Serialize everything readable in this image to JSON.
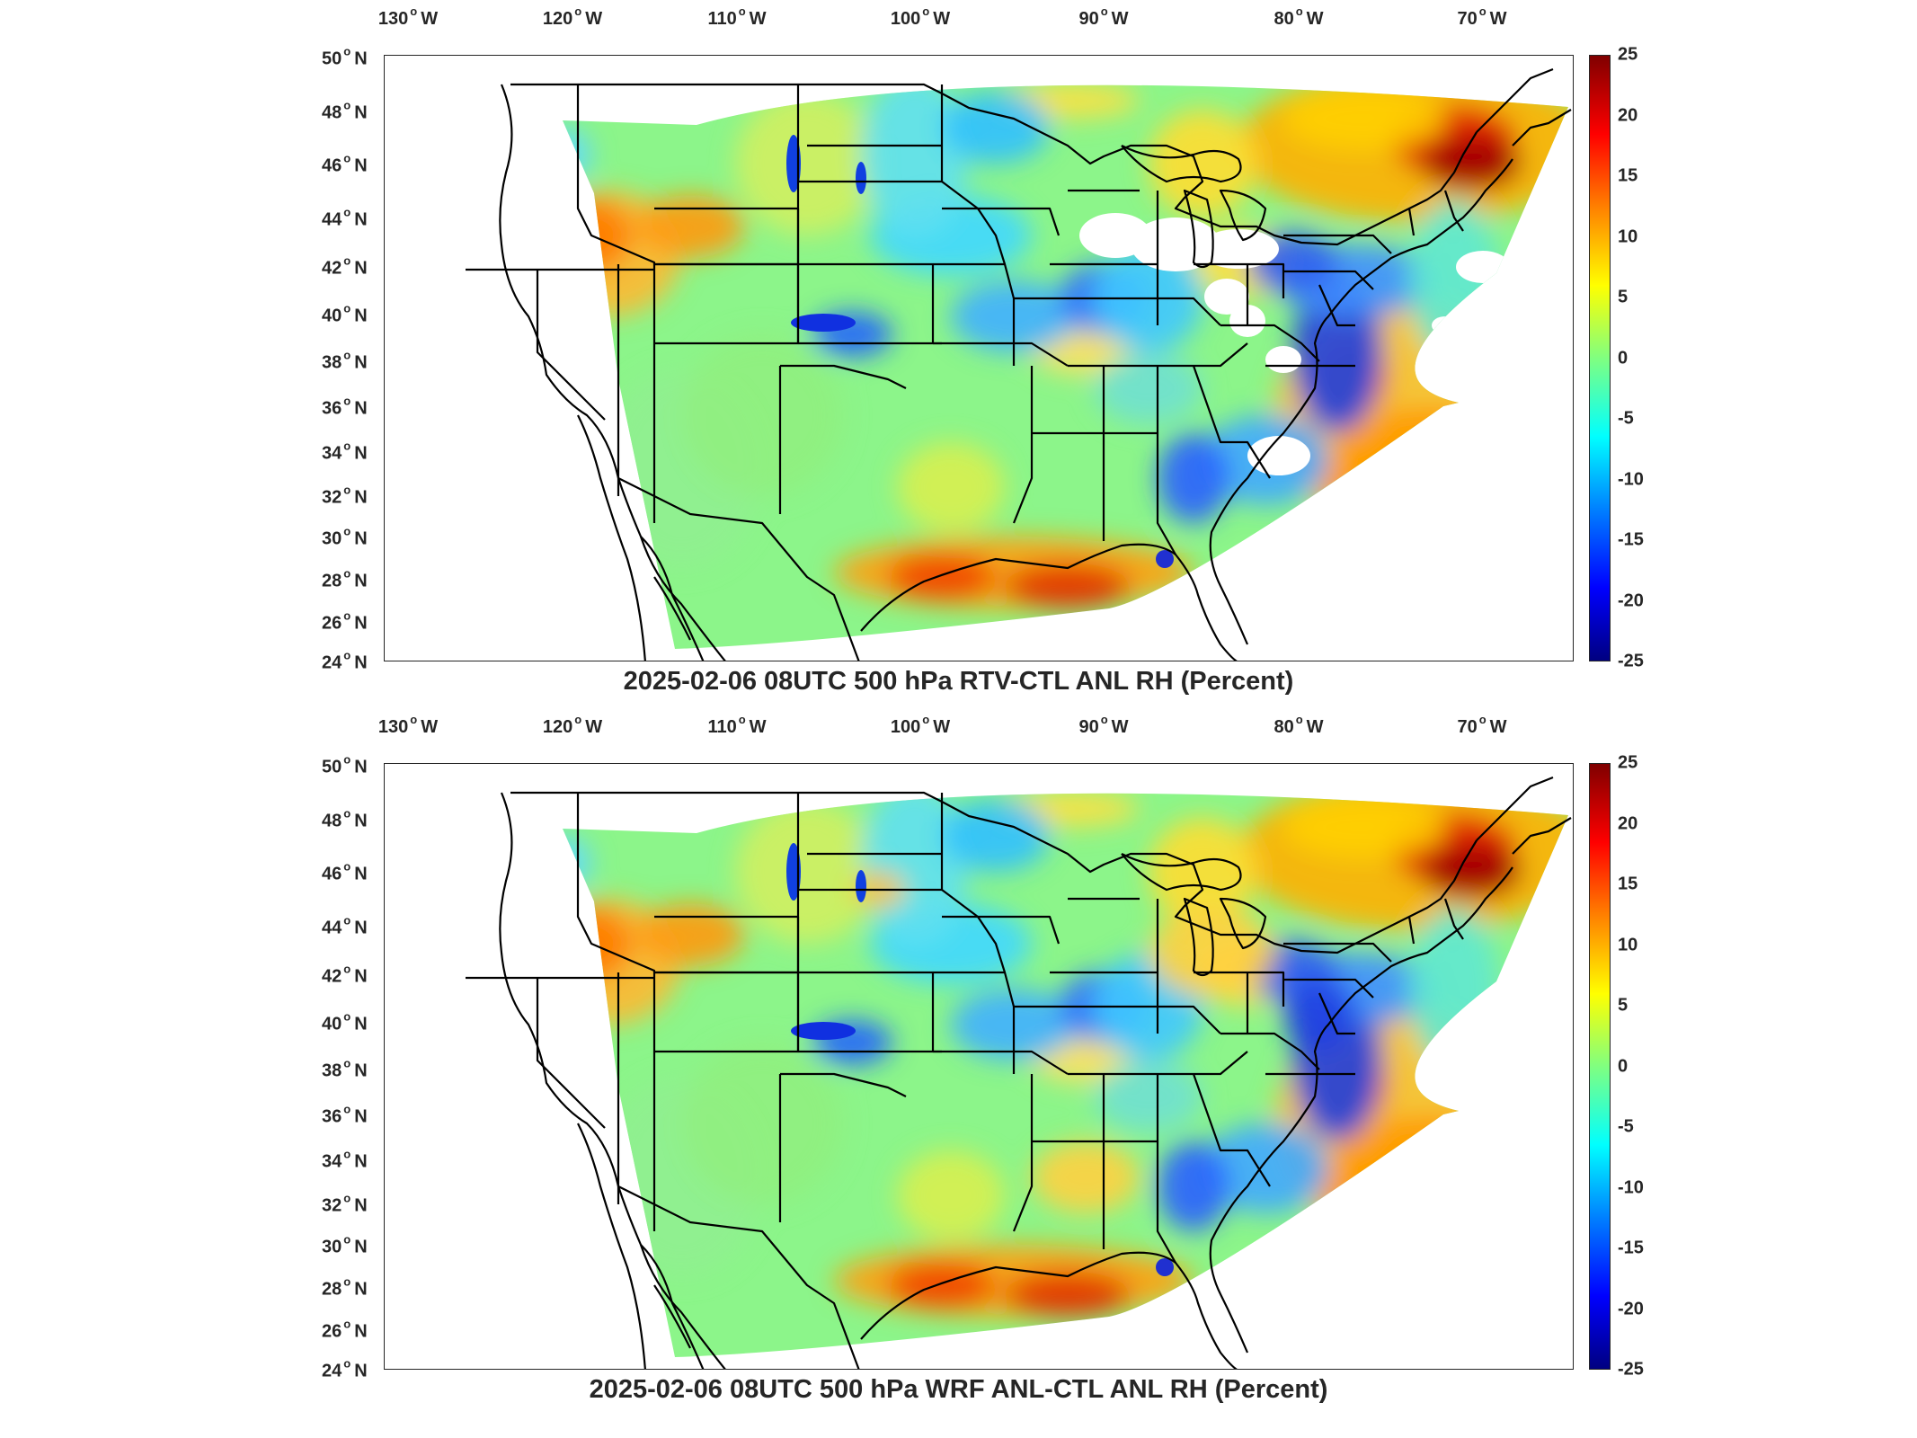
{
  "figure": {
    "panels": [
      {
        "title": "2025-02-06 08UTC 500 hPa RTV-CTL ANL RH (Percent)"
      },
      {
        "title": "2025-02-06 08UTC 500 hPa WRF ANL-CTL ANL RH (Percent)"
      }
    ],
    "lon_ticks": [
      "130",
      "120",
      "110",
      "100",
      "90",
      "80",
      "70"
    ],
    "lon_suffix": "W",
    "lat_ticks": [
      "50",
      "48",
      "46",
      "44",
      "42",
      "40",
      "38",
      "36",
      "34",
      "32",
      "30",
      "28",
      "26",
      "24"
    ],
    "lat_suffix": "N",
    "colorbar_ticks": [
      "25",
      "20",
      "15",
      "10",
      "5",
      "0",
      "-5",
      "-10",
      "-15",
      "-20",
      "-25"
    ],
    "colorbar_colors": [
      "#800000",
      "#ff0000",
      "#ff8000",
      "#ffff00",
      "#80ff80",
      "#00ffff",
      "#0080ff",
      "#0000ff",
      "#000080"
    ]
  }
}
